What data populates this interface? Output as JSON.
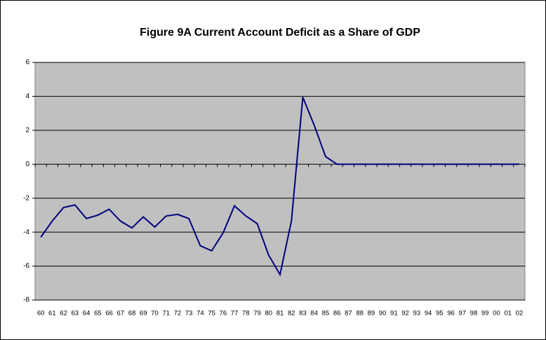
{
  "chart_data": {
    "type": "line",
    "title": "Figure 9A Current Account Deficit as a Share of GDP",
    "categories": [
      "60",
      "61",
      "62",
      "63",
      "64",
      "65",
      "66",
      "67",
      "68",
      "69",
      "70",
      "71",
      "72",
      "73",
      "74",
      "75",
      "76",
      "77",
      "78",
      "79",
      "80",
      "81",
      "82",
      "83",
      "84",
      "85",
      "86",
      "87",
      "88",
      "89",
      "90",
      "91",
      "92",
      "93",
      "94",
      "95",
      "96",
      "97",
      "98",
      "99",
      "00",
      "01",
      "02"
    ],
    "values": [
      -4.3,
      -3.35,
      -2.55,
      -2.4,
      -3.2,
      -3.0,
      -2.65,
      -3.35,
      -3.75,
      -3.1,
      -3.7,
      -3.05,
      -2.95,
      -3.2,
      -4.8,
      -5.1,
      -4.05,
      -2.45,
      -3.05,
      -3.5,
      -5.35,
      -6.5,
      -3.35,
      3.95,
      2.3,
      0.45,
      0,
      0,
      0,
      0,
      0,
      0,
      0,
      0,
      0,
      0,
      0,
      0,
      0,
      0,
      0,
      0,
      0
    ],
    "color": "#000080",
    "ylim": [
      -8,
      6
    ],
    "yticks": [
      -8,
      -6,
      -4,
      -2,
      0,
      2,
      4,
      6
    ],
    "grid": true
  }
}
